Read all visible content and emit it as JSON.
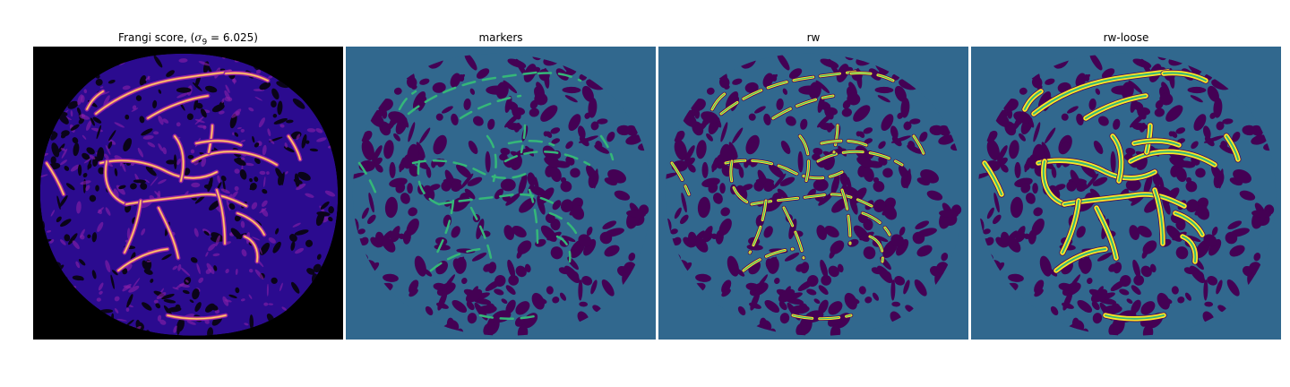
{
  "panels": [
    {
      "id": "frangi",
      "title_prefix": "Frangi score, (",
      "title_sigma": "σ",
      "title_sub": "9",
      "title_suffix": " = 6.025)",
      "colormap": "magma",
      "background": "#000000"
    },
    {
      "id": "markers",
      "title": "markers",
      "colormap": "viridis",
      "background": "#31688e"
    },
    {
      "id": "rw",
      "title": "rw",
      "colormap": "viridis",
      "background": "#31688e"
    },
    {
      "id": "rw-loose",
      "title": "rw-loose",
      "colormap": "viridis",
      "background": "#31688e"
    }
  ],
  "colors": {
    "region_dark": "#440154",
    "region_mid": "#31688e",
    "vessel_marker": "#35b779",
    "vessel_segment": "#fde725",
    "frangi_low": "#2b0b8f",
    "frangi_mid": "#8b1fa8",
    "frangi_high": "#f07f5e",
    "frangi_peak": "#fcd37a"
  }
}
